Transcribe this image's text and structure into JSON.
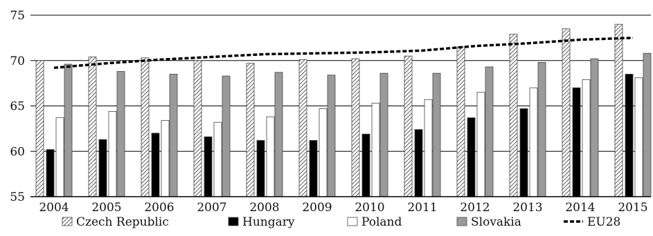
{
  "chart_data": {
    "type": "bar",
    "title": "",
    "xlabel": "",
    "ylabel": "",
    "ylim": [
      55,
      75
    ],
    "yticks": [
      55,
      60,
      65,
      70,
      75
    ],
    "grid": "horizontal",
    "legend_position": "bottom",
    "categories": [
      "2004",
      "2005",
      "2006",
      "2007",
      "2008",
      "2009",
      "2010",
      "2011",
      "2012",
      "2013",
      "2014",
      "2015"
    ],
    "series": [
      {
        "name": "Czech Republic",
        "type": "bar",
        "style": "hatched",
        "color": "#ffffff",
        "values": [
          70.0,
          70.4,
          70.3,
          70.0,
          69.7,
          70.1,
          70.2,
          70.5,
          71.5,
          72.9,
          73.5,
          74.0
        ]
      },
      {
        "name": "Hungary",
        "type": "bar",
        "style": "solid",
        "color": "#000000",
        "values": [
          60.2,
          61.3,
          62.0,
          61.6,
          61.2,
          61.2,
          61.9,
          62.4,
          63.7,
          64.7,
          67.0,
          68.5
        ]
      },
      {
        "name": "Poland",
        "type": "bar",
        "style": "solid",
        "color": "#ffffff",
        "values": [
          63.7,
          64.4,
          63.4,
          63.2,
          63.8,
          64.7,
          65.3,
          65.7,
          66.5,
          67.0,
          67.9,
          68.1
        ]
      },
      {
        "name": "Slovakia",
        "type": "bar",
        "style": "solid",
        "color": "#9a9a9a",
        "values": [
          69.6,
          68.8,
          68.5,
          68.3,
          68.7,
          68.4,
          68.6,
          68.6,
          69.3,
          69.8,
          70.2,
          70.8
        ]
      },
      {
        "name": "EU28",
        "type": "line",
        "style": "dashed",
        "color": "#000000",
        "values": [
          69.2,
          69.7,
          70.1,
          70.4,
          70.7,
          70.8,
          70.9,
          71.1,
          71.6,
          71.9,
          72.3,
          72.5
        ]
      }
    ]
  }
}
